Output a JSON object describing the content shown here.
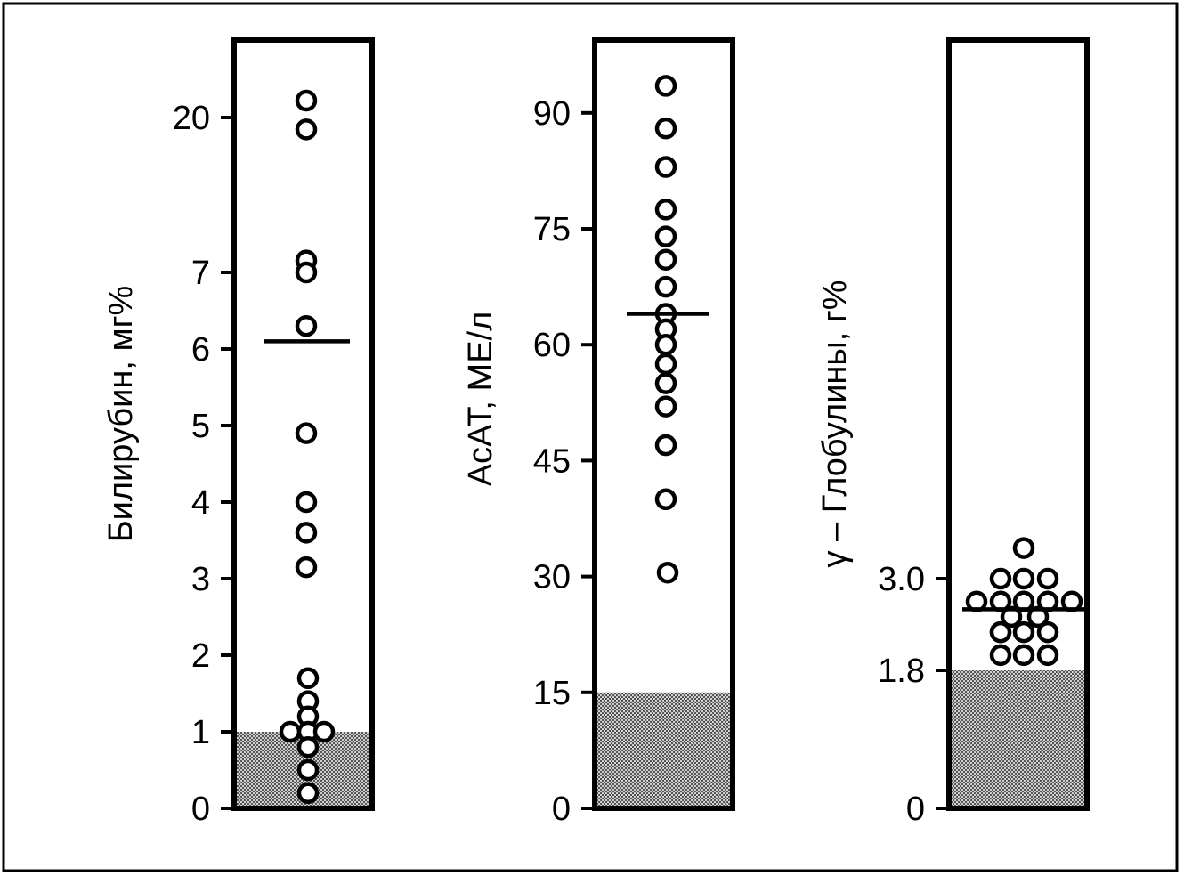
{
  "chart_data": [
    {
      "type": "scatter",
      "ylabel": "Билирубин, мг%",
      "y_ticks": [
        {
          "value": 0,
          "label": "0"
        },
        {
          "value": 1,
          "label": "1"
        },
        {
          "value": 2,
          "label": "2"
        },
        {
          "value": 3,
          "label": "3"
        },
        {
          "value": 4,
          "label": "4"
        },
        {
          "value": 5,
          "label": "5"
        },
        {
          "value": 6,
          "label": "6"
        },
        {
          "value": 7,
          "label": "7"
        },
        {
          "value": 20,
          "label": "20"
        }
      ],
      "normal_range": [
        0,
        1
      ],
      "mean": 6.1,
      "points": [
        21,
        19,
        8,
        7,
        6.3,
        4.9,
        4.0,
        3.6,
        3.15,
        1.7,
        1.4,
        1.2,
        1.0,
        1.0,
        1.0,
        0.8,
        0.5,
        0.2
      ]
    },
    {
      "type": "scatter",
      "ylabel": "АсАТ, МЕ/л",
      "y_ticks": [
        {
          "value": 0,
          "label": "0"
        },
        {
          "value": 15,
          "label": "15"
        },
        {
          "value": 30,
          "label": "30"
        },
        {
          "value": 45,
          "label": "45"
        },
        {
          "value": 60,
          "label": "60"
        },
        {
          "value": 75,
          "label": "75"
        },
        {
          "value": 90,
          "label": "90"
        }
      ],
      "ylim": [
        0,
        100
      ],
      "normal_range": [
        0,
        15
      ],
      "mean": 64,
      "points": [
        93.5,
        88,
        83,
        77.5,
        74,
        71,
        67.5,
        64,
        62,
        60,
        57.5,
        55,
        52,
        47,
        40,
        30.5
      ]
    },
    {
      "type": "scatter",
      "ylabel": "γ – Глобулины,  г%",
      "y_ticks": [
        {
          "value": 0,
          "label": "0"
        },
        {
          "value": 1.8,
          "label": "1.8"
        },
        {
          "value": 3.0,
          "label": "3.0"
        }
      ],
      "normal_range": [
        0,
        1.8
      ],
      "mean": 2.6,
      "points": [
        3.4,
        3.0,
        3.0,
        3.0,
        2.7,
        2.7,
        2.7,
        2.7,
        2.7,
        2.5,
        2.5,
        2.3,
        2.3,
        2.3,
        2.3,
        2.0,
        2.0,
        2.0
      ]
    }
  ]
}
